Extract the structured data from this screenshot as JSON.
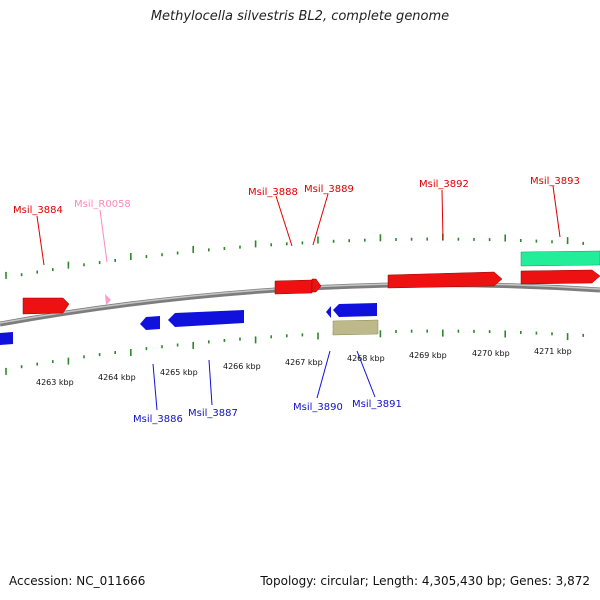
{
  "title": "Methylocella silvestris BL2, complete genome",
  "footer": {
    "accession": "Accession: NC_011666",
    "summary": "Topology: circular; Length: 4,305,430 bp; Genes: 3,872"
  },
  "colors": {
    "forward_gene": "#ee1111",
    "reverse_gene": "#1111dd",
    "rna_gene": "#ff99cc",
    "other_reverse": "#bdb98a",
    "other_forward": "#22ee99",
    "tick": "#2a8a2a",
    "backbone": "#888888"
  },
  "scale_labels": [
    "4263 kbp",
    "4264 kbp",
    "4265 kbp",
    "4266 kbp",
    "4267 kbp",
    "4268 kbp",
    "4269 kbp",
    "4270 kbp",
    "4271 kbp"
  ],
  "forward_labels": [
    "Msil_3884",
    "Msil_R0058",
    "Msil_3888",
    "Msil_3889",
    "Msil_3892",
    "Msil_3893"
  ],
  "reverse_labels": [
    "Msil_3886",
    "Msil_3887",
    "Msil_3890",
    "Msil_3891"
  ]
}
